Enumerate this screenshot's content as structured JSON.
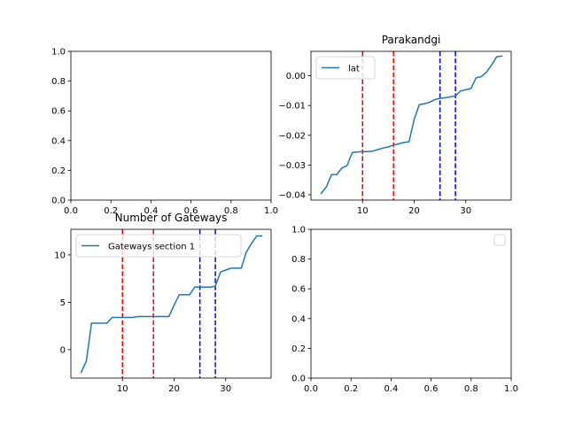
{
  "chart_data": [
    {
      "type": "empty",
      "xlim": [
        0,
        1
      ],
      "ylim": [
        0,
        1
      ],
      "xticks": [
        "0.0",
        "0.2",
        "0.4",
        "0.6",
        "0.8",
        "1.0"
      ],
      "yticks": [
        "0.0",
        "0.2",
        "0.4",
        "0.6",
        "0.8",
        "1.0"
      ]
    },
    {
      "type": "line",
      "title": "Parakandgi",
      "xlim": [
        0,
        38.8
      ],
      "ylim": [
        -0.0418,
        0.0082
      ],
      "xticks": [
        "10",
        "20",
        "30"
      ],
      "yticks": [
        "0.00",
        "−0.01",
        "−0.02",
        "−0.03",
        "−0.04"
      ],
      "series": [
        {
          "name": "lat",
          "color": "#1f77b4",
          "x": [
            2,
            3,
            4,
            5,
            6,
            7,
            8,
            9,
            10,
            11,
            12,
            13,
            14,
            15,
            16,
            17,
            18,
            19,
            20,
            21,
            22,
            23,
            24,
            25,
            26,
            27,
            28,
            29,
            30,
            31,
            32,
            33,
            34,
            35,
            36,
            37
          ],
          "y": [
            -0.0395,
            -0.0373,
            -0.0332,
            -0.0332,
            -0.031,
            -0.0302,
            -0.0258,
            -0.0256,
            -0.0255,
            -0.0255,
            -0.0253,
            -0.0248,
            -0.0243,
            -0.0239,
            -0.0233,
            -0.0229,
            -0.0224,
            -0.0222,
            -0.0147,
            -0.0097,
            -0.0094,
            -0.0089,
            -0.008,
            -0.0076,
            -0.0074,
            -0.0071,
            -0.0068,
            -0.0051,
            -0.0047,
            -0.0043,
            -0.0007,
            -0.0003,
            0.0012,
            0.0036,
            0.0064,
            0.0066
          ]
        }
      ],
      "vlines": [
        {
          "x": 10,
          "color": "#ff0000"
        },
        {
          "x": 16,
          "color": "#ff0000"
        },
        {
          "x": 25,
          "color": "#0000ff"
        },
        {
          "x": 28,
          "color": "#0000ff"
        }
      ],
      "legend": "upper left"
    },
    {
      "type": "line",
      "title": "Number of Gateways",
      "xlim": [
        0,
        38.8
      ],
      "ylim": [
        -3.0,
        12.7
      ],
      "xticks": [
        "10",
        "20",
        "30"
      ],
      "yticks": [
        "0",
        "5",
        "10"
      ],
      "series": [
        {
          "name": "Gateways section 1",
          "color": "#1f77b4",
          "x": [
            2,
            3,
            4,
            5,
            6,
            7,
            8,
            9,
            10,
            11,
            12,
            13,
            14,
            15,
            16,
            17,
            18,
            19,
            20,
            21,
            22,
            23,
            24,
            25,
            26,
            27,
            28,
            29,
            30,
            31,
            32,
            33,
            34,
            35,
            36,
            37
          ],
          "y": [
            -2.4,
            -1.2,
            2.8,
            2.8,
            2.8,
            2.8,
            3.4,
            3.4,
            3.4,
            3.4,
            3.4,
            3.5,
            3.5,
            3.5,
            3.5,
            3.5,
            3.5,
            3.5,
            4.7,
            5.8,
            5.8,
            5.8,
            6.6,
            6.6,
            6.6,
            6.6,
            6.7,
            8.2,
            8.4,
            8.6,
            8.6,
            8.6,
            10.3,
            11.2,
            12.0,
            12.0
          ]
        }
      ],
      "vlines": [
        {
          "x": 10,
          "color": "#ff0000"
        },
        {
          "x": 16,
          "color": "#ff0000"
        },
        {
          "x": 25,
          "color": "#0000ff"
        },
        {
          "x": 28,
          "color": "#0000ff"
        }
      ],
      "legend": "upper left"
    },
    {
      "type": "empty",
      "xlim": [
        0,
        1
      ],
      "ylim": [
        0,
        1
      ],
      "xticks": [
        "0.0",
        "0.2",
        "0.4",
        "0.6",
        "0.8",
        "1.0"
      ],
      "yticks": [
        "0.0",
        "0.2",
        "0.4",
        "0.6",
        "0.8",
        "1.0"
      ],
      "legend": "upper right (empty)"
    }
  ]
}
